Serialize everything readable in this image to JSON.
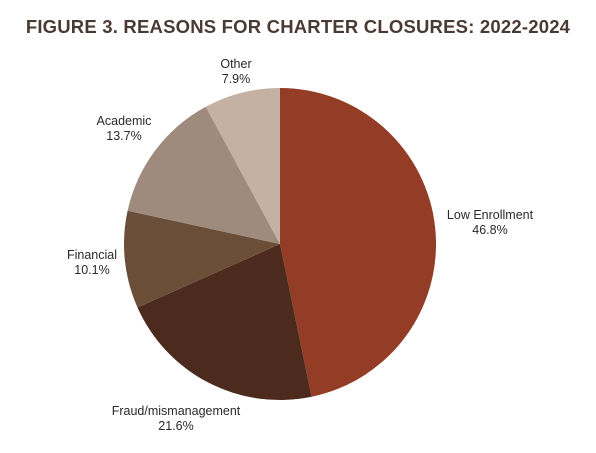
{
  "chart_data": {
    "type": "pie",
    "title": "FIGURE 3. REASONS FOR CHARTER CLOSURES: 2022-2024",
    "slices": [
      {
        "label": "Low Enrollment",
        "value": 46.8,
        "value_label": "46.8%",
        "color": "#933d27"
      },
      {
        "label": "Fraud/mismanagement",
        "value": 21.6,
        "value_label": "21.6%",
        "color": "#4d2a1e"
      },
      {
        "label": "Financial",
        "value": 10.1,
        "value_label": "10.1%",
        "color": "#6a4e38"
      },
      {
        "label": "Academic",
        "value": 13.7,
        "value_label": "13.7%",
        "color": "#9e8b7d"
      },
      {
        "label": "Other",
        "value": 7.9,
        "value_label": "7.9%",
        "color": "#c4b1a4"
      }
    ],
    "start_angle": "12 o'clock",
    "direction": "clockwise",
    "legend": "none"
  }
}
